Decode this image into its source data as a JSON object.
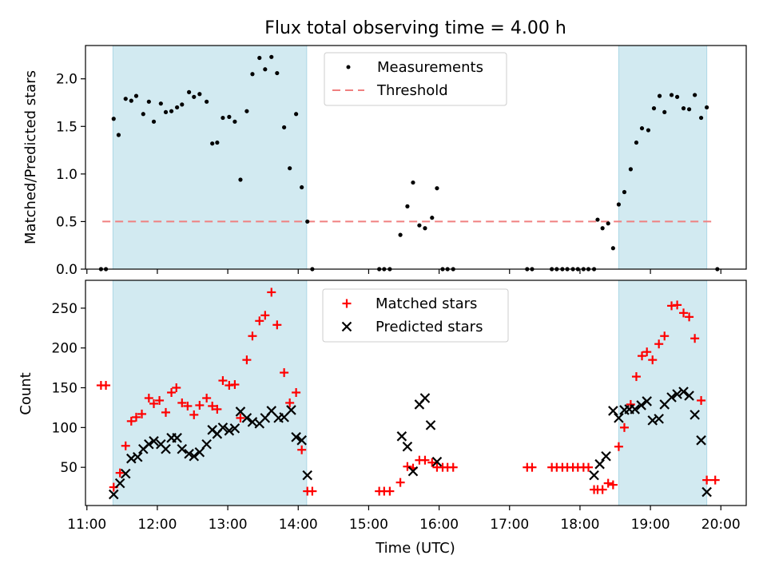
{
  "figure_title": "Flux total observing time = 4.00 h",
  "colors": {
    "shade": "#add8e6",
    "measurement": "#000000",
    "threshold": "#f08080",
    "matched": "#ff0000",
    "predicted": "#000000"
  },
  "chart_data": [
    {
      "type": "scatter",
      "title": "Flux total observing time = 4.00 h",
      "xlabel": "",
      "ylabel": "Matched/Predicted stars",
      "xlim": [
        10.98,
        20.36
      ],
      "ylim": [
        0.0,
        2.35
      ],
      "yticks": [
        0.0,
        0.5,
        1.0,
        1.5,
        2.0
      ],
      "ytick_labels": [
        "0.0",
        "0.5",
        "1.0",
        "1.5",
        "2.0"
      ],
      "grid": false,
      "legend_position": "top-center",
      "shaded_intervals": [
        [
          11.37,
          14.12
        ],
        [
          18.55,
          19.8
        ]
      ],
      "threshold": {
        "name": "Threshold",
        "y": 0.5,
        "x_range": [
          11.22,
          19.9
        ]
      },
      "series": [
        {
          "name": "Measurements",
          "points": [
            [
              11.2,
              0.0
            ],
            [
              11.27,
              0.0
            ],
            [
              11.38,
              1.58
            ],
            [
              11.45,
              1.41
            ],
            [
              11.55,
              1.79
            ],
            [
              11.63,
              1.77
            ],
            [
              11.7,
              1.82
            ],
            [
              11.8,
              1.63
            ],
            [
              11.88,
              1.76
            ],
            [
              11.95,
              1.55
            ],
            [
              12.05,
              1.74
            ],
            [
              12.12,
              1.65
            ],
            [
              12.2,
              1.66
            ],
            [
              12.28,
              1.7
            ],
            [
              12.35,
              1.73
            ],
            [
              12.45,
              1.86
            ],
            [
              12.52,
              1.81
            ],
            [
              12.6,
              1.84
            ],
            [
              12.7,
              1.76
            ],
            [
              12.78,
              1.32
            ],
            [
              12.85,
              1.33
            ],
            [
              12.93,
              1.59
            ],
            [
              13.02,
              1.6
            ],
            [
              13.1,
              1.55
            ],
            [
              13.18,
              0.94
            ],
            [
              13.27,
              1.66
            ],
            [
              13.35,
              2.05
            ],
            [
              13.45,
              2.22
            ],
            [
              13.53,
              2.1
            ],
            [
              13.62,
              2.23
            ],
            [
              13.7,
              2.06
            ],
            [
              13.8,
              1.49
            ],
            [
              13.88,
              1.06
            ],
            [
              13.97,
              1.63
            ],
            [
              14.05,
              0.86
            ],
            [
              14.13,
              0.5
            ],
            [
              14.2,
              0.0
            ],
            [
              15.15,
              0.0
            ],
            [
              15.22,
              0.0
            ],
            [
              15.3,
              0.0
            ],
            [
              15.45,
              0.36
            ],
            [
              15.55,
              0.66
            ],
            [
              15.63,
              0.91
            ],
            [
              15.72,
              0.46
            ],
            [
              15.8,
              0.43
            ],
            [
              15.9,
              0.54
            ],
            [
              15.97,
              0.85
            ],
            [
              16.05,
              0.0
            ],
            [
              16.12,
              0.0
            ],
            [
              16.2,
              0.0
            ],
            [
              17.25,
              0.0
            ],
            [
              17.32,
              0.0
            ],
            [
              17.6,
              0.0
            ],
            [
              17.67,
              0.0
            ],
            [
              17.75,
              0.0
            ],
            [
              17.82,
              0.0
            ],
            [
              17.9,
              0.0
            ],
            [
              17.97,
              0.0
            ],
            [
              18.05,
              0.0
            ],
            [
              18.12,
              0.0
            ],
            [
              18.2,
              0.0
            ],
            [
              18.25,
              0.52
            ],
            [
              18.32,
              0.43
            ],
            [
              18.4,
              0.48
            ],
            [
              18.47,
              0.22
            ],
            [
              18.55,
              0.68
            ],
            [
              18.63,
              0.81
            ],
            [
              18.72,
              1.05
            ],
            [
              18.8,
              1.33
            ],
            [
              18.88,
              1.48
            ],
            [
              18.97,
              1.46
            ],
            [
              19.05,
              1.69
            ],
            [
              19.13,
              1.82
            ],
            [
              19.2,
              1.65
            ],
            [
              19.3,
              1.83
            ],
            [
              19.38,
              1.81
            ],
            [
              19.47,
              1.69
            ],
            [
              19.55,
              1.68
            ],
            [
              19.63,
              1.83
            ],
            [
              19.72,
              1.59
            ],
            [
              19.8,
              1.7
            ],
            [
              19.95,
              0.0
            ]
          ]
        }
      ]
    },
    {
      "type": "scatter",
      "xlabel": "Time (UTC)",
      "ylabel": "Count",
      "xlim": [
        10.98,
        20.36
      ],
      "ylim": [
        2,
        285
      ],
      "yticks": [
        50,
        100,
        150,
        200,
        250
      ],
      "ytick_labels": [
        "50",
        "100",
        "150",
        "200",
        "250"
      ],
      "xticks": [
        11,
        12,
        13,
        14,
        15,
        16,
        17,
        18,
        19,
        20
      ],
      "xtick_labels": [
        "11:00",
        "12:00",
        "13:00",
        "14:00",
        "15:00",
        "16:00",
        "17:00",
        "18:00",
        "19:00",
        "20:00"
      ],
      "grid": false,
      "legend_position": "top-center",
      "shaded_intervals": [
        [
          11.37,
          14.12
        ],
        [
          18.55,
          19.8
        ]
      ],
      "series": [
        {
          "name": "Matched stars",
          "marker": "plus",
          "points": [
            [
              11.2,
              153
            ],
            [
              11.27,
              153
            ],
            [
              11.38,
              25
            ],
            [
              11.47,
              43
            ],
            [
              11.55,
              77
            ],
            [
              11.63,
              108
            ],
            [
              11.7,
              113
            ],
            [
              11.78,
              117
            ],
            [
              11.88,
              137
            ],
            [
              11.95,
              130
            ],
            [
              12.03,
              134
            ],
            [
              12.12,
              119
            ],
            [
              12.2,
              144
            ],
            [
              12.27,
              150
            ],
            [
              12.35,
              131
            ],
            [
              12.43,
              127
            ],
            [
              12.52,
              116
            ],
            [
              12.6,
              128
            ],
            [
              12.7,
              137
            ],
            [
              12.78,
              127
            ],
            [
              12.85,
              123
            ],
            [
              12.93,
              159
            ],
            [
              13.02,
              153
            ],
            [
              13.1,
              154
            ],
            [
              13.18,
              112
            ],
            [
              13.27,
              185
            ],
            [
              13.35,
              215
            ],
            [
              13.45,
              234
            ],
            [
              13.53,
              241
            ],
            [
              13.62,
              270
            ],
            [
              13.7,
              229
            ],
            [
              13.8,
              169
            ],
            [
              13.88,
              131
            ],
            [
              13.97,
              144
            ],
            [
              14.05,
              72
            ],
            [
              14.13,
              20
            ],
            [
              14.2,
              20
            ],
            [
              15.15,
              20
            ],
            [
              15.22,
              20
            ],
            [
              15.3,
              20
            ],
            [
              15.45,
              31
            ],
            [
              15.55,
              51
            ],
            [
              15.63,
              49
            ],
            [
              15.72,
              59
            ],
            [
              15.8,
              59
            ],
            [
              15.9,
              56
            ],
            [
              15.97,
              50
            ],
            [
              16.05,
              50
            ],
            [
              16.12,
              50
            ],
            [
              16.2,
              50
            ],
            [
              17.25,
              50
            ],
            [
              17.32,
              50
            ],
            [
              17.6,
              50
            ],
            [
              17.67,
              50
            ],
            [
              17.75,
              50
            ],
            [
              17.82,
              50
            ],
            [
              17.9,
              50
            ],
            [
              17.97,
              50
            ],
            [
              18.05,
              50
            ],
            [
              18.12,
              50
            ],
            [
              18.2,
              22
            ],
            [
              18.25,
              22
            ],
            [
              18.32,
              22
            ],
            [
              18.4,
              30
            ],
            [
              18.47,
              28
            ],
            [
              18.55,
              76
            ],
            [
              18.63,
              100
            ],
            [
              18.72,
              129
            ],
            [
              18.8,
              164
            ],
            [
              18.88,
              190
            ],
            [
              18.95,
              195
            ],
            [
              19.03,
              185
            ],
            [
              19.12,
              205
            ],
            [
              19.2,
              215
            ],
            [
              19.3,
              253
            ],
            [
              19.38,
              254
            ],
            [
              19.47,
              244
            ],
            [
              19.55,
              239
            ],
            [
              19.63,
              212
            ],
            [
              19.72,
              134
            ],
            [
              19.8,
              34
            ],
            [
              19.92,
              34
            ]
          ]
        },
        {
          "name": "Predicted stars",
          "marker": "cross",
          "points": [
            [
              11.38,
              16
            ],
            [
              11.47,
              30
            ],
            [
              11.55,
              42
            ],
            [
              11.63,
              61
            ],
            [
              11.72,
              63
            ],
            [
              11.8,
              73
            ],
            [
              11.88,
              79
            ],
            [
              11.95,
              83
            ],
            [
              12.05,
              79
            ],
            [
              12.12,
              73
            ],
            [
              12.2,
              87
            ],
            [
              12.28,
              87
            ],
            [
              12.35,
              73
            ],
            [
              12.45,
              67
            ],
            [
              12.52,
              64
            ],
            [
              12.6,
              69
            ],
            [
              12.7,
              79
            ],
            [
              12.78,
              97
            ],
            [
              12.85,
              92
            ],
            [
              12.93,
              100
            ],
            [
              13.02,
              96
            ],
            [
              13.1,
              99
            ],
            [
              13.18,
              120
            ],
            [
              13.27,
              112
            ],
            [
              13.35,
              107
            ],
            [
              13.45,
              105
            ],
            [
              13.53,
              112
            ],
            [
              13.62,
              121
            ],
            [
              13.72,
              112
            ],
            [
              13.8,
              113
            ],
            [
              13.9,
              122
            ],
            [
              13.97,
              88
            ],
            [
              14.05,
              84
            ],
            [
              14.13,
              40
            ],
            [
              15.47,
              89
            ],
            [
              15.55,
              76
            ],
            [
              15.63,
              45
            ],
            [
              15.72,
              129
            ],
            [
              15.8,
              137
            ],
            [
              15.88,
              103
            ],
            [
              15.97,
              57
            ],
            [
              18.2,
              40
            ],
            [
              18.28,
              54
            ],
            [
              18.37,
              64
            ],
            [
              18.47,
              121
            ],
            [
              18.55,
              112
            ],
            [
              18.63,
              122
            ],
            [
              18.7,
              123
            ],
            [
              18.78,
              123
            ],
            [
              18.87,
              128
            ],
            [
              18.95,
              133
            ],
            [
              19.03,
              109
            ],
            [
              19.12,
              111
            ],
            [
              19.2,
              129
            ],
            [
              19.3,
              138
            ],
            [
              19.38,
              142
            ],
            [
              19.47,
              145
            ],
            [
              19.55,
              140
            ],
            [
              19.63,
              116
            ],
            [
              19.72,
              84
            ],
            [
              19.8,
              19
            ]
          ]
        }
      ]
    }
  ]
}
